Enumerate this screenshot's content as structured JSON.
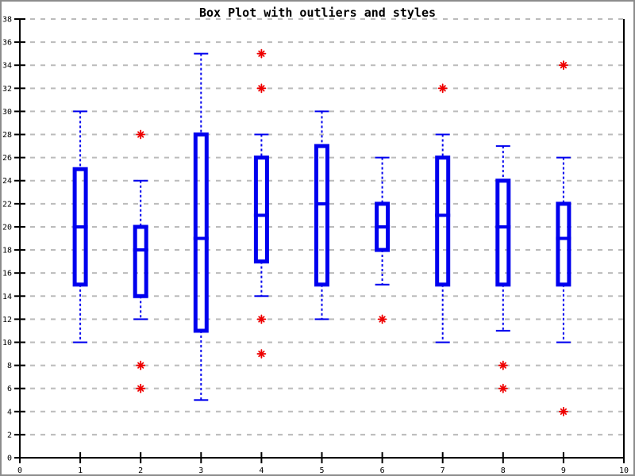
{
  "chart_data": {
    "type": "boxplot",
    "title": "Box Plot with outliers and styles",
    "xlabel": "",
    "ylabel": "",
    "xlim": [
      0,
      10
    ],
    "ylim": [
      0,
      38
    ],
    "x_ticks": [
      0,
      1,
      2,
      3,
      4,
      5,
      6,
      7,
      8,
      9,
      10
    ],
    "y_ticks": [
      0,
      2,
      4,
      6,
      8,
      10,
      12,
      14,
      16,
      18,
      20,
      22,
      24,
      26,
      28,
      30,
      32,
      34,
      36,
      38
    ],
    "grid": "horizontal-dashed",
    "legend": "none",
    "colors": {
      "box": "#0000ee",
      "outlier": "#ee0000",
      "axis": "#000000",
      "grid": "#bbbbbb",
      "background": "#ffffff"
    },
    "boxes": [
      {
        "x": 1,
        "whisker_low": 10,
        "q1": 15,
        "median": 20,
        "q3": 25,
        "whisker_high": 30,
        "outliers": []
      },
      {
        "x": 2,
        "whisker_low": 12,
        "q1": 14,
        "median": 18,
        "q3": 20,
        "whisker_high": 24,
        "outliers": [
          28,
          8,
          6
        ]
      },
      {
        "x": 3,
        "whisker_low": 5,
        "q1": 11,
        "median": 19,
        "q3": 28,
        "whisker_high": 35,
        "outliers": []
      },
      {
        "x": 4,
        "whisker_low": 14,
        "q1": 17,
        "median": 21,
        "q3": 26,
        "whisker_high": 28,
        "outliers": [
          35,
          32,
          12,
          9
        ]
      },
      {
        "x": 5,
        "whisker_low": 12,
        "q1": 15,
        "median": 22,
        "q3": 27,
        "whisker_high": 30,
        "outliers": []
      },
      {
        "x": 6,
        "whisker_low": 15,
        "q1": 18,
        "median": 20,
        "q3": 22,
        "whisker_high": 26,
        "outliers": [
          12
        ]
      },
      {
        "x": 7,
        "whisker_low": 10,
        "q1": 15,
        "median": 21,
        "q3": 26,
        "whisker_high": 28,
        "outliers": [
          32
        ]
      },
      {
        "x": 8,
        "whisker_low": 11,
        "q1": 15,
        "median": 20,
        "q3": 24,
        "whisker_high": 27,
        "outliers": [
          8,
          6
        ]
      },
      {
        "x": 9,
        "whisker_low": 10,
        "q1": 15,
        "median": 19,
        "q3": 22,
        "whisker_high": 26,
        "outliers": [
          34,
          4
        ]
      }
    ]
  }
}
